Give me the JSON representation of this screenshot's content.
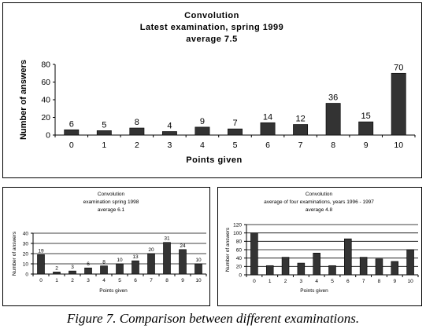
{
  "chart_data": [
    {
      "type": "bar",
      "title_lines": [
        "Convolution",
        "Latest examination, spring 1999",
        "average 7.5"
      ],
      "xlabel": "Points given",
      "ylabel": "Number of answers",
      "categories": [
        "0",
        "1",
        "2",
        "3",
        "4",
        "5",
        "6",
        "7",
        "8",
        "9",
        "10"
      ],
      "values": [
        6,
        5,
        8,
        4,
        9,
        7,
        14,
        12,
        36,
        15,
        70
      ],
      "data_labels": [
        "6",
        "5",
        "8",
        "4",
        "9",
        "7",
        "14",
        "12",
        "36",
        "15",
        "70"
      ],
      "ylim": [
        0,
        80
      ],
      "yticks": [
        "0",
        "20",
        "40",
        "60",
        "80"
      ],
      "grid": false,
      "bar_color": "#333333"
    },
    {
      "type": "bar",
      "title_lines": [
        "Convolution",
        "examination spring 1998",
        "average 6.1"
      ],
      "xlabel": "Points given",
      "ylabel": "Number of answers",
      "categories": [
        "0",
        "1",
        "2",
        "3",
        "4",
        "5",
        "6",
        "7",
        "8",
        "9",
        "10"
      ],
      "values": [
        19,
        2,
        3,
        6,
        8,
        10,
        13,
        20,
        31,
        24,
        10
      ],
      "data_labels": [
        "19",
        "2",
        "3",
        "6",
        "8",
        "10",
        "13",
        "20",
        "31",
        "24",
        "10"
      ],
      "ylim": [
        0,
        40
      ],
      "yticks": [
        "0",
        "10",
        "20",
        "30",
        "40"
      ],
      "grid": true,
      "bar_color": "#333333"
    },
    {
      "type": "bar",
      "title_lines": [
        "Convolution",
        "average of four examinations, years 1996 - 1997",
        "average 4.8"
      ],
      "xlabel": "Points given",
      "ylabel": "Number of answers",
      "categories": [
        "0",
        "1",
        "2",
        "3",
        "4",
        "5",
        "6",
        "7",
        "8",
        "9",
        "10"
      ],
      "values": [
        100,
        22,
        42,
        28,
        52,
        22,
        86,
        42,
        38,
        32,
        60
      ],
      "data_labels": [],
      "ylim": [
        0,
        120
      ],
      "yticks": [
        "0",
        "20",
        "40",
        "60",
        "80",
        "100",
        "120"
      ],
      "grid": true,
      "bar_color": "#333333"
    }
  ],
  "caption": "Figure 7. Comparison between different examinations."
}
